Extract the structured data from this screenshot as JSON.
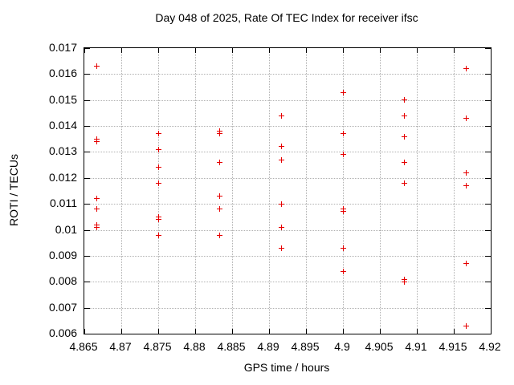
{
  "colors": {
    "background": "#ffffff",
    "text": "#000000",
    "border": "#000000",
    "grid": "#b0b0b0",
    "marker": "#e60000"
  },
  "chart_data": {
    "type": "scatter",
    "title": "Day 048 of 2025, Rate Of TEC Index for receiver ifsc",
    "xlabel": "GPS time / hours",
    "ylabel": "ROTI / TECUs",
    "xlim": [
      4.865,
      4.92
    ],
    "ylim": [
      0.006,
      0.017
    ],
    "grid": true,
    "legend": null,
    "marker": "plus",
    "x_ticks": [
      4.865,
      4.87,
      4.875,
      4.88,
      4.885,
      4.89,
      4.895,
      4.9,
      4.905,
      4.91,
      4.915,
      4.92
    ],
    "x_tick_labels": [
      "4.865",
      "4.87",
      "4.875",
      "4.88",
      "4.885",
      "4.89",
      "4.895",
      "4.9",
      "4.905",
      "4.91",
      "4.915",
      "4.92"
    ],
    "y_ticks": [
      0.006,
      0.007,
      0.008,
      0.009,
      0.01,
      0.011,
      0.012,
      0.013,
      0.014,
      0.015,
      0.016,
      0.017
    ],
    "y_tick_labels": [
      "0.006",
      "0.007",
      "0.008",
      "0.009",
      "0.01",
      "0.011",
      "0.012",
      "0.013",
      "0.014",
      "0.015",
      "0.016",
      "0.017"
    ],
    "series": [
      {
        "name": "ROTI",
        "points": [
          [
            4.8667,
            0.0163
          ],
          [
            4.8667,
            0.0135
          ],
          [
            4.8667,
            0.0134
          ],
          [
            4.8667,
            0.0112
          ],
          [
            4.8667,
            0.0108
          ],
          [
            4.8667,
            0.0102
          ],
          [
            4.8667,
            0.0101
          ],
          [
            4.875,
            0.0137
          ],
          [
            4.875,
            0.0131
          ],
          [
            4.875,
            0.0124
          ],
          [
            4.875,
            0.0118
          ],
          [
            4.875,
            0.0105
          ],
          [
            4.875,
            0.0104
          ],
          [
            4.875,
            0.0098
          ],
          [
            4.8833,
            0.0138
          ],
          [
            4.8833,
            0.0137
          ],
          [
            4.8833,
            0.0126
          ],
          [
            4.8833,
            0.0113
          ],
          [
            4.8833,
            0.0108
          ],
          [
            4.8833,
            0.0098
          ],
          [
            4.8917,
            0.0144
          ],
          [
            4.8917,
            0.0132
          ],
          [
            4.8917,
            0.0127
          ],
          [
            4.8917,
            0.011
          ],
          [
            4.8917,
            0.0101
          ],
          [
            4.8917,
            0.0093
          ],
          [
            4.9,
            0.0153
          ],
          [
            4.9,
            0.0137
          ],
          [
            4.9,
            0.0129
          ],
          [
            4.9,
            0.0108
          ],
          [
            4.9,
            0.0107
          ],
          [
            4.9,
            0.0093
          ],
          [
            4.9,
            0.0084
          ],
          [
            4.9083,
            0.015
          ],
          [
            4.9083,
            0.0144
          ],
          [
            4.9083,
            0.0136
          ],
          [
            4.9083,
            0.0126
          ],
          [
            4.9083,
            0.0118
          ],
          [
            4.9083,
            0.0081
          ],
          [
            4.9083,
            0.008
          ],
          [
            4.9167,
            0.0162
          ],
          [
            4.9167,
            0.0143
          ],
          [
            4.9167,
            0.0122
          ],
          [
            4.9167,
            0.0117
          ],
          [
            4.9167,
            0.0087
          ],
          [
            4.9167,
            0.0063
          ]
        ]
      }
    ]
  }
}
